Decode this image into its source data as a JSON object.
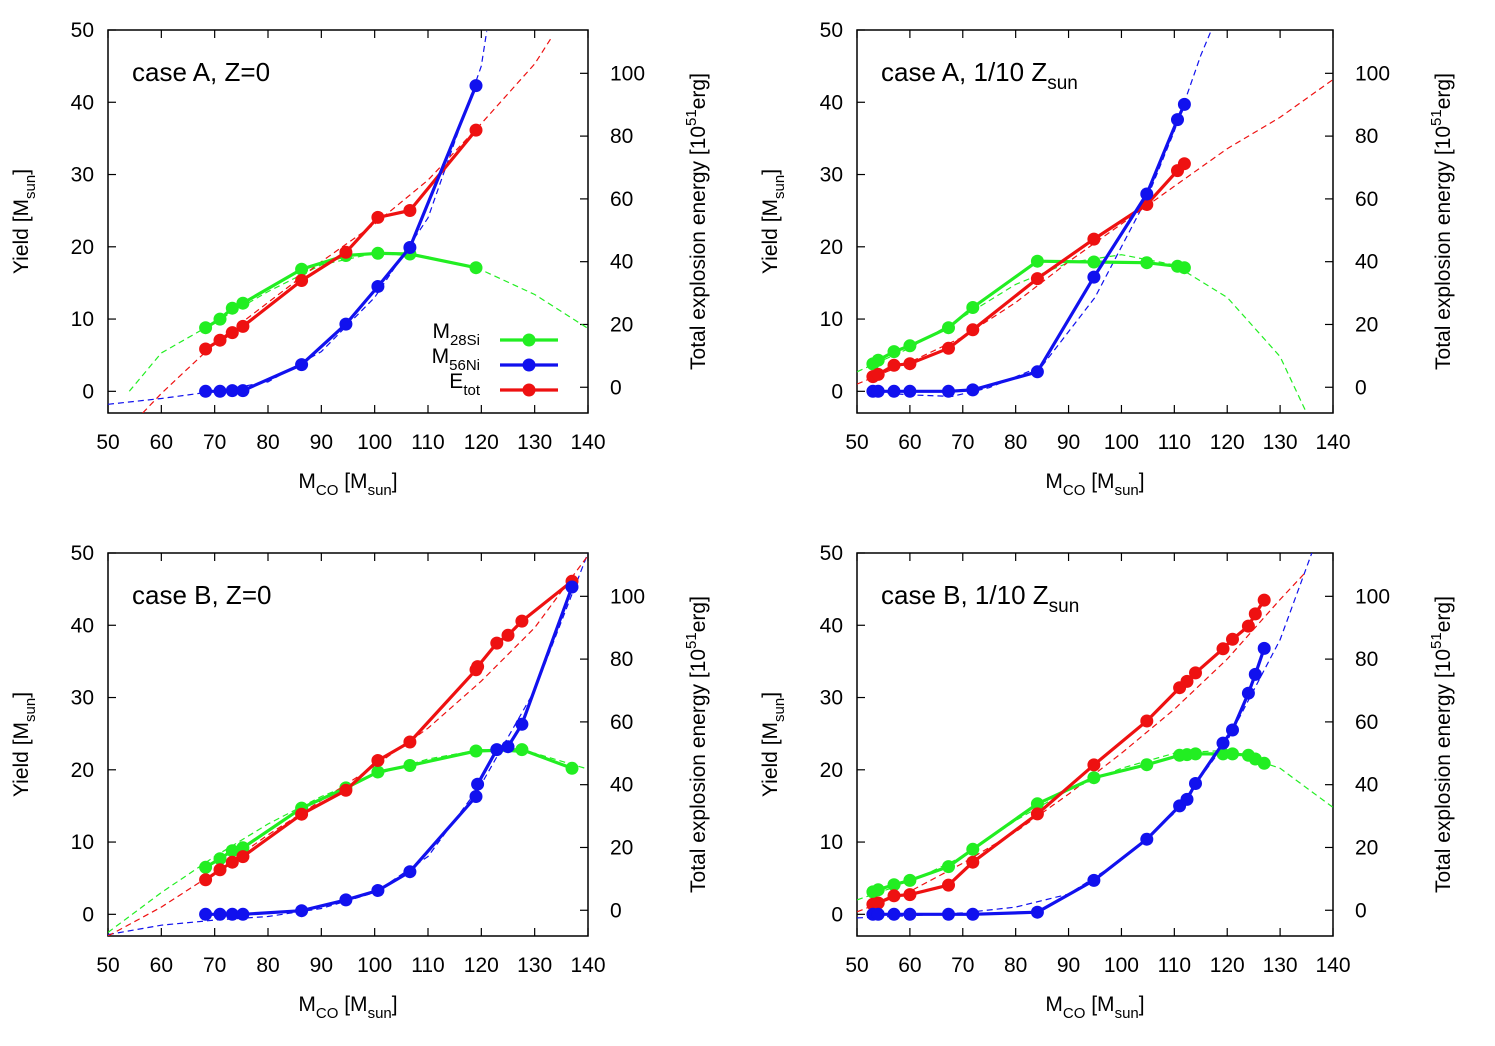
{
  "figure": {
    "xlabel_main": "M",
    "xlabel_sub": "CO",
    "xlabel_unit_open": " [M",
    "xlabel_unit_sub": "sun",
    "xlabel_unit_close": "]",
    "ylabel_main": "Yield [M",
    "ylabel_sub": "sun",
    "ylabel_close": "]",
    "y2label_main": "Total explosion energy [10",
    "y2label_sup": "51",
    "y2label_tail": "erg]",
    "legend": [
      {
        "main": "M",
        "sub": "28Si",
        "color": "#22ee22"
      },
      {
        "main": "M",
        "sub": "56Ni",
        "color": "#1111ee"
      },
      {
        "main": "E",
        "sub": "tot",
        "color": "#ee1111"
      }
    ],
    "colors": {
      "si": "#22ee22",
      "ni": "#1111ee",
      "e": "#ee1111"
    }
  },
  "chart_data": [
    {
      "type": "line",
      "title_main": "case A, Z=0",
      "title_sub": "",
      "xlim": [
        50,
        140
      ],
      "ylim": [
        -3,
        50
      ],
      "y2lim": [
        -8.2,
        113.8
      ],
      "xticks": [
        "50",
        "60",
        "70",
        "80",
        "90",
        "100",
        "110",
        "120",
        "130",
        "140"
      ],
      "yticks": [
        "0",
        "10",
        "20",
        "30",
        "40",
        "50"
      ],
      "y2ticks": [
        "0",
        "20",
        "40",
        "60",
        "80",
        "100"
      ],
      "legend_shown": true,
      "series": [
        {
          "name": "M28Si",
          "color": "#22ee22",
          "axis": "y",
          "x": [
            68.3,
            71,
            73.3,
            75.3,
            86.3,
            94.6,
            100.6,
            106.6,
            119
          ],
          "values": [
            8.8,
            10,
            11.5,
            12.2,
            16.9,
            18.8,
            19.1,
            19,
            17.1
          ],
          "fit": [
            [
              54,
              0
            ],
            [
              60,
              5.3
            ],
            [
              68.3,
              8.8
            ],
            [
              80,
              13.8
            ],
            [
              90,
              17.5
            ],
            [
              100,
              19.1
            ],
            [
              110,
              18.6
            ],
            [
              120,
              16.8
            ],
            [
              130,
              13.4
            ],
            [
              140,
              8.7
            ]
          ]
        },
        {
          "name": "M56Ni",
          "color": "#1111ee",
          "axis": "y",
          "x": [
            68.3,
            71,
            73.3,
            75.3,
            86.3,
            94.6,
            100.6,
            106.6,
            119
          ],
          "values": [
            0,
            0,
            0.1,
            0.1,
            3.7,
            9.3,
            14.5,
            19.9,
            42.3
          ],
          "fit": [
            [
              50,
              -1.8
            ],
            [
              60,
              -1
            ],
            [
              70,
              0
            ],
            [
              80,
              1.3
            ],
            [
              90,
              5.5
            ],
            [
              100,
              13
            ],
            [
              110,
              24
            ],
            [
              120,
              45
            ],
            [
              121,
              49.8
            ]
          ]
        },
        {
          "name": "Etot",
          "color": "#ee1111",
          "axis": "y2",
          "x": [
            68.3,
            71,
            73.3,
            75.3,
            86.3,
            94.6,
            100.6,
            106.6,
            119
          ],
          "values": [
            12.2,
            15,
            17.4,
            19.4,
            34,
            43,
            54.1,
            56.3,
            81.9
          ],
          "fit": [
            [
              56.5,
              -8.2
            ],
            [
              60,
              -2
            ],
            [
              70,
              14
            ],
            [
              80,
              27
            ],
            [
              90,
              40
            ],
            [
              100,
              52
            ],
            [
              110,
              66
            ],
            [
              120,
              84
            ],
            [
              130,
              103
            ],
            [
              133,
              111
            ]
          ]
        }
      ]
    },
    {
      "type": "line",
      "title_main": "case A, 1/10 Z",
      "title_sub": "sun",
      "xlim": [
        50,
        140
      ],
      "ylim": [
        -3,
        50
      ],
      "y2lim": [
        -8.2,
        113.8
      ],
      "xticks": [
        "50",
        "60",
        "70",
        "80",
        "90",
        "100",
        "110",
        "120",
        "130",
        "140"
      ],
      "yticks": [
        "0",
        "10",
        "20",
        "30",
        "40",
        "50"
      ],
      "y2ticks": [
        "0",
        "20",
        "40",
        "60",
        "80",
        "100"
      ],
      "legend_shown": false,
      "series": [
        {
          "name": "M28Si",
          "color": "#22ee22",
          "axis": "y",
          "x": [
            53,
            54,
            57,
            60,
            67.3,
            71.9,
            84.1,
            94.8,
            104.8,
            110.6,
            111.9
          ],
          "values": [
            3.8,
            4.3,
            5.5,
            6.3,
            8.8,
            11.6,
            18,
            17.9,
            17.8,
            17.3,
            17.1
          ],
          "fit": [
            [
              50,
              2.7
            ],
            [
              60,
              6
            ],
            [
              70,
              10.3
            ],
            [
              80,
              14.8
            ],
            [
              90,
              17.8
            ],
            [
              100,
              18.9
            ],
            [
              110,
              17.5
            ],
            [
              120,
              13
            ],
            [
              130,
              4.8
            ],
            [
              135,
              -3
            ]
          ]
        },
        {
          "name": "M56Ni",
          "color": "#1111ee",
          "axis": "y",
          "x": [
            53,
            54,
            57,
            60,
            67.3,
            71.9,
            84.1,
            94.8,
            104.8,
            110.6,
            111.9
          ],
          "values": [
            0,
            0,
            0,
            0,
            0,
            0.2,
            2.7,
            15.8,
            27.3,
            37.6,
            39.7
          ],
          "fit": [
            [
              52,
              0
            ],
            [
              60,
              -0.5
            ],
            [
              68,
              -0.7
            ],
            [
              75,
              0.5
            ],
            [
              85,
              3.5
            ],
            [
              95,
              13
            ],
            [
              105,
              27
            ],
            [
              110,
              36
            ],
            [
              115,
              46.5
            ],
            [
              117,
              50
            ]
          ]
        },
        {
          "name": "Etot",
          "color": "#ee1111",
          "axis": "y2",
          "x": [
            53,
            54,
            57,
            60,
            67.3,
            71.9,
            84.1,
            94.8,
            104.8,
            110.6,
            111.9
          ],
          "values": [
            3.4,
            4.1,
            7,
            7.5,
            12.4,
            18.3,
            34.6,
            47.2,
            58.2,
            69,
            71.2
          ],
          "fit": [
            [
              50,
              1
            ],
            [
              60,
              8
            ],
            [
              70,
              16
            ],
            [
              80,
              27
            ],
            [
              90,
              40
            ],
            [
              100,
              52
            ],
            [
              110,
              64
            ],
            [
              120,
              76
            ],
            [
              130,
              86
            ],
            [
              140,
              98
            ]
          ]
        }
      ]
    },
    {
      "type": "line",
      "title_main": "case B, Z=0",
      "title_sub": "",
      "xlim": [
        50,
        140
      ],
      "ylim": [
        -3,
        50
      ],
      "y2lim": [
        -8.2,
        113.8
      ],
      "xticks": [
        "50",
        "60",
        "70",
        "80",
        "90",
        "100",
        "110",
        "120",
        "130",
        "140"
      ],
      "yticks": [
        "0",
        "10",
        "20",
        "30",
        "40",
        "50"
      ],
      "y2ticks": [
        "0",
        "20",
        "40",
        "60",
        "80",
        "100"
      ],
      "legend_shown": false,
      "series": [
        {
          "name": "M28Si",
          "color": "#22ee22",
          "axis": "y",
          "x": [
            68.3,
            71,
            73.3,
            75.3,
            86.3,
            94.6,
            100.6,
            106.6,
            119,
            127.6,
            137
          ],
          "values": [
            6.5,
            7.7,
            8.8,
            9.2,
            14.7,
            17.5,
            19.7,
            20.6,
            22.6,
            22.8,
            20.2
          ],
          "fit": [
            [
              50,
              -2.5
            ],
            [
              60,
              3
            ],
            [
              70,
              8
            ],
            [
              80,
              12.5
            ],
            [
              90,
              16.3
            ],
            [
              100,
              19.3
            ],
            [
              110,
              21.5
            ],
            [
              120,
              22.8
            ],
            [
              130,
              22.3
            ],
            [
              140,
              20.1
            ]
          ]
        },
        {
          "name": "M56Ni",
          "color": "#1111ee",
          "axis": "y",
          "x": [
            68.3,
            71,
            73.3,
            75.3,
            86.3,
            94.6,
            100.6,
            106.6,
            119,
            119.3,
            122.9,
            125,
            127.6,
            137
          ],
          "values": [
            0,
            0,
            0,
            0,
            0.5,
            2,
            3.3,
            5.9,
            16.3,
            18,
            22.8,
            23.2,
            26.3,
            45.3
          ],
          "fit": [
            [
              50,
              -2.8
            ],
            [
              60,
              -1.5
            ],
            [
              70,
              -0.8
            ],
            [
              80,
              -0.3
            ],
            [
              90,
              0.8
            ],
            [
              100,
              3
            ],
            [
              110,
              8
            ],
            [
              120,
              18
            ],
            [
              130,
              31
            ],
            [
              140,
              50
            ]
          ]
        },
        {
          "name": "Etot",
          "color": "#ee1111",
          "axis": "y2",
          "x": [
            68.3,
            71,
            73.3,
            75.3,
            86.3,
            94.6,
            100.6,
            106.6,
            119,
            119.3,
            122.9,
            125,
            127.6,
            137
          ],
          "values": [
            9.7,
            12.9,
            15.3,
            17.1,
            30.6,
            38.2,
            47.7,
            53.6,
            76.6,
            77.6,
            85.1,
            87.6,
            92.1,
            104.8
          ],
          "fit": [
            [
              50,
              -8.2
            ],
            [
              60,
              1
            ],
            [
              70,
              12
            ],
            [
              80,
              24
            ],
            [
              90,
              35
            ],
            [
              100,
              46
            ],
            [
              110,
              58
            ],
            [
              120,
              73
            ],
            [
              130,
              90
            ],
            [
              140,
              113
            ]
          ]
        }
      ]
    },
    {
      "type": "line",
      "title_main": "case B, 1/10 Z",
      "title_sub": "sun",
      "xlim": [
        50,
        140
      ],
      "ylim": [
        -3,
        50
      ],
      "y2lim": [
        -8.2,
        113.8
      ],
      "xticks": [
        "50",
        "60",
        "70",
        "80",
        "90",
        "100",
        "110",
        "120",
        "130",
        "140"
      ],
      "yticks": [
        "0",
        "10",
        "20",
        "30",
        "40",
        "50"
      ],
      "y2ticks": [
        "0",
        "20",
        "40",
        "60",
        "80",
        "100"
      ],
      "legend_shown": false,
      "series": [
        {
          "name": "M28Si",
          "color": "#22ee22",
          "axis": "y",
          "x": [
            53,
            54,
            57,
            60,
            67.3,
            71.9,
            84.1,
            94.8,
            104.8,
            111,
            112.4,
            114,
            119.2,
            121,
            124,
            125.3,
            127
          ],
          "values": [
            3.1,
            3.4,
            4.1,
            4.7,
            6.6,
            9,
            15.3,
            18.9,
            20.7,
            22,
            22.1,
            22.2,
            22.2,
            22.2,
            22,
            21.5,
            20.9
          ],
          "fit": [
            [
              50,
              2
            ],
            [
              60,
              4.5
            ],
            [
              70,
              8
            ],
            [
              80,
              13
            ],
            [
              90,
              17.2
            ],
            [
              100,
              20.2
            ],
            [
              110,
              22.3
            ],
            [
              120,
              22.7
            ],
            [
              130,
              20.2
            ],
            [
              140,
              14.8
            ]
          ]
        },
        {
          "name": "M56Ni",
          "color": "#1111ee",
          "axis": "y",
          "x": [
            53,
            54,
            57,
            60,
            67.3,
            71.9,
            84.1,
            94.8,
            104.8,
            111,
            112.4,
            114,
            119.2,
            121,
            124,
            125.3,
            127
          ],
          "values": [
            0,
            0,
            0,
            0,
            0,
            0,
            0.3,
            4.7,
            10.4,
            15,
            15.9,
            18.1,
            23.7,
            25.5,
            30.6,
            33.2,
            36.8
          ],
          "fit": [
            [
              50,
              -0.5
            ],
            [
              60,
              -0.2
            ],
            [
              70,
              0.2
            ],
            [
              80,
              1
            ],
            [
              90,
              2.8
            ],
            [
              100,
              7.5
            ],
            [
              110,
              14
            ],
            [
              120,
              24
            ],
            [
              130,
              38
            ],
            [
              136,
              50
            ]
          ]
        },
        {
          "name": "Etot",
          "color": "#ee1111",
          "axis": "y2",
          "x": [
            53,
            54,
            57,
            60,
            67.3,
            71.9,
            84.1,
            94.8,
            104.8,
            111,
            112.4,
            114,
            119.2,
            121,
            124,
            125.3,
            127
          ],
          "values": [
            1.9,
            2.3,
            4.6,
            5,
            8,
            15.3,
            30.7,
            46.3,
            60.3,
            70.9,
            72.9,
            75.6,
            83.3,
            86.3,
            90.5,
            94.4,
            98.8
          ],
          "fit": [
            [
              50,
              -0.5
            ],
            [
              60,
              6
            ],
            [
              70,
              15
            ],
            [
              80,
              25
            ],
            [
              90,
              37
            ],
            [
              100,
              50
            ],
            [
              110,
              64
            ],
            [
              120,
              80
            ],
            [
              130,
              99
            ],
            [
              135,
              108
            ]
          ]
        }
      ]
    }
  ]
}
